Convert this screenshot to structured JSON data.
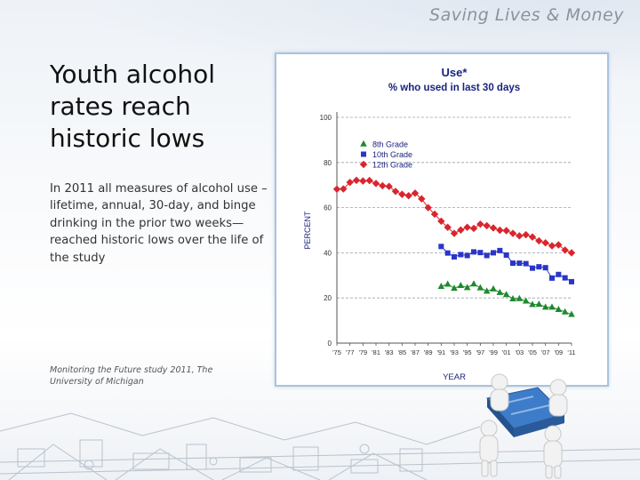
{
  "brand": "Saving Lives & Money",
  "slide": {
    "title": "Youth alcohol rates reach historic lows",
    "body": "In 2011 all measures of alcohol use – lifetime, annual, 30-day, and binge drinking in the prior two weeks—reached historic lows over the life of the study",
    "citation": "Monitoring the Future study 2011, The University of Michigan"
  },
  "colors": {
    "grade8": "#1e8a2e",
    "grade10": "#2a35c8",
    "grade12": "#d9262e",
    "frame": "#a9c3de"
  },
  "chart_data": {
    "type": "line",
    "title": "Use*",
    "subtitle": "% who used in last 30 days",
    "xlabel": "YEAR",
    "ylabel": "PERCENT",
    "ylim": [
      0,
      100
    ],
    "yticks": [
      0,
      20,
      40,
      60,
      80,
      100
    ],
    "xticks": [
      "'75",
      "'77",
      "'79",
      "'81",
      "'83",
      "'85",
      "'87",
      "'89",
      "'91",
      "'93",
      "'95",
      "'97",
      "'99",
      "'01",
      "'03",
      "'05",
      "'07",
      "'09",
      "'11"
    ],
    "legend": [
      "8th Grade",
      "10th Grade",
      "12th Grade"
    ],
    "legend_position": "upper-left",
    "series": [
      {
        "name": "8th Grade",
        "color": "#1e8a2e",
        "marker": "triangle",
        "x": [
          1991,
          1992,
          1993,
          1994,
          1995,
          1996,
          1997,
          1998,
          1999,
          2000,
          2001,
          2002,
          2003,
          2004,
          2005,
          2006,
          2007,
          2008,
          2009,
          2010,
          2011
        ],
        "values": [
          25.1,
          26.1,
          24.3,
          25.5,
          24.6,
          26.2,
          24.5,
          23.0,
          24.0,
          22.4,
          21.5,
          19.6,
          19.7,
          18.6,
          17.1,
          17.2,
          15.9,
          15.9,
          14.9,
          13.8,
          12.7
        ]
      },
      {
        "name": "10th Grade",
        "color": "#2a35c8",
        "marker": "square",
        "x": [
          1991,
          1992,
          1993,
          1994,
          1995,
          1996,
          1997,
          1998,
          1999,
          2000,
          2001,
          2002,
          2003,
          2004,
          2005,
          2006,
          2007,
          2008,
          2009,
          2010,
          2011
        ],
        "values": [
          42.8,
          39.9,
          38.2,
          39.2,
          38.8,
          40.4,
          40.1,
          38.8,
          40.0,
          41.0,
          39.0,
          35.4,
          35.4,
          35.2,
          33.2,
          33.8,
          33.4,
          28.8,
          30.4,
          28.9,
          27.2
        ]
      },
      {
        "name": "12th Grade",
        "color": "#d9262e",
        "marker": "diamond",
        "x": [
          1975,
          1976,
          1977,
          1978,
          1979,
          1980,
          1981,
          1982,
          1983,
          1984,
          1985,
          1986,
          1987,
          1988,
          1989,
          1990,
          1991,
          1992,
          1993,
          1994,
          1995,
          1996,
          1997,
          1998,
          1999,
          2000,
          2001,
          2002,
          2003,
          2004,
          2005,
          2006,
          2007,
          2008,
          2009,
          2010,
          2011
        ],
        "values": [
          68.2,
          68.3,
          71.2,
          72.1,
          71.8,
          72.0,
          70.7,
          69.7,
          69.4,
          67.2,
          65.9,
          65.3,
          66.4,
          63.9,
          60.0,
          57.1,
          54.0,
          51.3,
          48.6,
          50.1,
          51.3,
          50.8,
          52.7,
          52.0,
          51.0,
          50.0,
          49.8,
          48.6,
          47.5,
          48.0,
          47.0,
          45.3,
          44.4,
          43.1,
          43.5,
          41.2,
          40.0
        ]
      }
    ]
  }
}
